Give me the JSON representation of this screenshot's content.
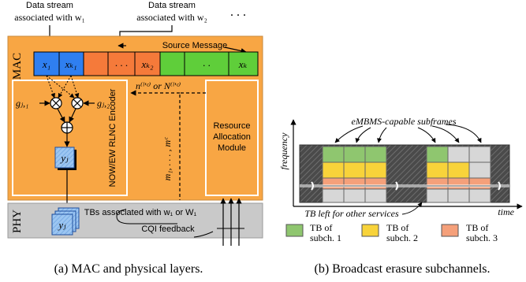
{
  "left": {
    "stream1": [
      "Data stream",
      "associated with w₁"
    ],
    "stream2": [
      "Data stream",
      "associated with w₂"
    ],
    "ellipsis": ". . .",
    "mac_label": "MAC",
    "phy_label": "PHY",
    "source_message": "Source Message",
    "cells": [
      "x₁",
      "xₖ₁",
      "",
      ". . .",
      "xₖ₂",
      "",
      ". .",
      "xₖ"
    ],
    "g1": "gⱼ,₁",
    "g2": "gⱼ,₂",
    "yj": "yⱼ",
    "encoder_label": "NOW/EW RLNC Encoder",
    "n_label": "n⁽ˡ'ᶜ⁾ or N⁽ˡ'ᶜ⁾",
    "m_label": "m₁, . . . , mᶜ",
    "resource_label": [
      "Resource",
      "Allocation",
      "Module"
    ],
    "tbs_label": "TBs associated with w₁ or W₁",
    "cqi_label": "CQI feedback",
    "caption": "(a) MAC and physical layers."
  },
  "right": {
    "embms_label": "eMBMS-capable subframes",
    "y_axis": "frequency",
    "x_axis": "time",
    "tb_other": "TB left for other services",
    "legend": [
      {
        "label": [
          "TB of",
          "subch. 1"
        ],
        "color": "#8fc66f"
      },
      {
        "label": [
          "TB of",
          "subch. 2"
        ],
        "color": "#f8d33a"
      },
      {
        "label": [
          "TB of",
          "subch. 3"
        ],
        "color": "#f5a07a"
      }
    ],
    "caption": "(b) Broadcast erasure subchannels."
  },
  "colors": {
    "orange_panel": "#f8a644",
    "orange_cell": "#f57a3a",
    "blue_cell": "#2f7ff0",
    "green_cell": "#5fce3a",
    "gray_phy": "#c9c9c9",
    "dark_gray": "#555555",
    "light_gray": "#d7d7d7"
  }
}
